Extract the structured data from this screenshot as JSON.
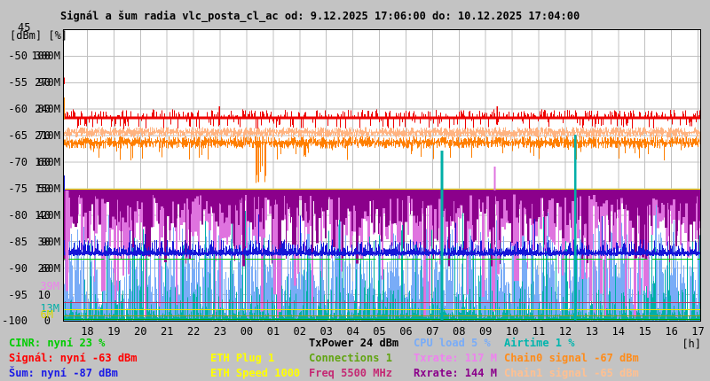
{
  "title": "Signál a šum radia vlc_posta_cl_ac od: 9.12.2025 17:06:00 do: 10.12.2025 17:04:00",
  "axis": {
    "top_value": "45",
    "unit_label": "[dBm] [%]",
    "hour_unit": "[h]",
    "rows": [
      {
        "dbm": "-50",
        "pct": "100",
        "rate": "300M"
      },
      {
        "dbm": "-55",
        "pct": "90",
        "rate": "270M"
      },
      {
        "dbm": "-60",
        "pct": "80",
        "rate": "240M"
      },
      {
        "dbm": "-65",
        "pct": "70",
        "rate": "210M"
      },
      {
        "dbm": "-70",
        "pct": "60",
        "rate": "180M"
      },
      {
        "dbm": "-75",
        "pct": "50",
        "rate": "150M"
      },
      {
        "dbm": "-80",
        "pct": "40",
        "rate": "120M"
      },
      {
        "dbm": "-85",
        "pct": "30",
        "rate": "90M"
      },
      {
        "dbm": "-90",
        "pct": "20",
        "rate": "60M"
      },
      {
        "dbm": "-95",
        "pct": "10",
        "rate": ""
      },
      {
        "dbm": "-100",
        "pct": "0",
        "rate": ""
      }
    ],
    "colored_markers": [
      {
        "label": "39M",
        "color": "#ee82ee",
        "m": 39
      },
      {
        "label": "13M",
        "color": "#00afa7",
        "m": 13
      },
      {
        "label": "6M",
        "color": "#d6d600",
        "m": 6
      }
    ],
    "hours": [
      "18",
      "19",
      "20",
      "21",
      "22",
      "23",
      "00",
      "01",
      "02",
      "03",
      "04",
      "05",
      "06",
      "07",
      "08",
      "09",
      "10",
      "11",
      "12",
      "13",
      "14",
      "15",
      "16",
      "17"
    ]
  },
  "legend": {
    "col1": [
      {
        "label": "CINR: nyní 23 %",
        "color": "#00cc00"
      },
      {
        "label": "Signál: nyní -63 dBm",
        "color": "#ff0000"
      },
      {
        "label": "Šum: nyní -87 dBm",
        "color": "#1a1ae6"
      }
    ],
    "col2": [
      {
        "label": "ETH Plug 1",
        "color": "#ffff00"
      },
      {
        "label": "ETH Speed 1000",
        "color": "#ffff00"
      }
    ],
    "col3": [
      {
        "label": "TxPower 24 dBm",
        "color": "#000000"
      },
      {
        "label": "Connections 1",
        "color": "#62a413"
      },
      {
        "label": "Freq 5500 MHz",
        "color": "#c42a74"
      }
    ],
    "col4": [
      {
        "label": "CPU load 5 %",
        "color": "#79acf7"
      },
      {
        "label": "Txrate: 117 M",
        "color": "#ee82ee"
      },
      {
        "label": "Rxrate: 144 M",
        "color": "#8b008b"
      }
    ],
    "col5": [
      {
        "label": "Airtime 1 %",
        "color": "#00b5ad"
      },
      {
        "label": "Chain0 signal -67 dBm",
        "color": "#ff8c1a"
      },
      {
        "label": "Chain1 signal -65 dBm",
        "color": "#ffc091"
      }
    ]
  },
  "chart_data": {
    "type": "line",
    "title": "Signál a šum radia vlc_posta_cl_ac od: 9.12.2025 17:06:00 do: 10.12.2025 17:04:00",
    "x_hours": [
      "18",
      "19",
      "20",
      "21",
      "22",
      "23",
      "00",
      "01",
      "02",
      "03",
      "04",
      "05",
      "06",
      "07",
      "08",
      "09",
      "10",
      "11",
      "12",
      "13",
      "14",
      "15",
      "16",
      "17"
    ],
    "x_start": "17:06",
    "x_end": "17:04",
    "ylim_dbm": [
      -100,
      -45
    ],
    "ylim_pct": [
      0,
      110
    ],
    "ylim_rate_M": [
      0,
      330
    ],
    "grid": true,
    "series": [
      {
        "id": "signal",
        "label": "Signál",
        "color": "#ee0000",
        "kind": "fuzzy-line",
        "center_dbm": -62.0,
        "now": "-63 dBm"
      },
      {
        "id": "chain1",
        "label": "Chain1 signal",
        "color": "#ffb380",
        "kind": "fuzzy-line",
        "center_dbm": -64.7,
        "now": "-65 dBm"
      },
      {
        "id": "chain0",
        "label": "Chain0 signal",
        "color": "#ff7f00",
        "kind": "fuzzy-line",
        "center_dbm": -66.6,
        "now": "-67 dBm"
      },
      {
        "id": "sum",
        "label": "Šum",
        "color": "#1515d8",
        "kind": "fuzzy-line",
        "center_dbm": -87.1,
        "now": "-87 dBm"
      },
      {
        "id": "rxrate",
        "label": "Rxrate",
        "color": "#8b008b",
        "kind": "bars-down",
        "top_M": 148,
        "typ_M": [
          100,
          142
        ],
        "now": "144 M"
      },
      {
        "id": "txrate",
        "label": "Txrate",
        "color": "#df73df",
        "kind": "bars-down",
        "top_M": 148,
        "typ_M": [
          62,
          128
        ],
        "now": "117 M"
      },
      {
        "id": "cpu",
        "label": "CPU load",
        "color": "#79acf7",
        "kind": "bars-up",
        "typ_pct": [
          2,
          48
        ],
        "now": "5 %"
      },
      {
        "id": "airtime",
        "label": "Airtime",
        "color": "#00afa7",
        "kind": "bars-up",
        "typ_pct": [
          1,
          45
        ],
        "now": "1 %"
      }
    ],
    "hlines": [
      {
        "name": "eth-speed-line",
        "color": "#ffff00",
        "scale": "M",
        "value": 150
      },
      {
        "name": "txpower-line",
        "color": "#000000",
        "scale": "dbm",
        "value": -87.1
      },
      {
        "name": "cinr-line",
        "color": "#00c800",
        "scale": "dbm",
        "value": -88.2,
        "dash": "46 5"
      },
      {
        "name": "freq-line",
        "color": "#c83264",
        "scale": "M",
        "value": 21
      },
      {
        "name": "eth-line",
        "color": "#e8e800",
        "scale": "M",
        "value": 13.5
      },
      {
        "name": "plug-line",
        "color": "#a0a000",
        "scale": "M",
        "value": 6
      },
      {
        "name": "base-line",
        "color": "#00a000",
        "scale": "M",
        "value": 2
      }
    ],
    "events": [
      {
        "series": "airtime",
        "t": 14.26,
        "m": [
          0,
          193
        ],
        "w": 3
      },
      {
        "series": "airtime",
        "t": 19.28,
        "m": [
          0,
          211
        ],
        "w": 2.5
      },
      {
        "series": "txrate",
        "t": 16.24,
        "m": [
          175,
          148
        ],
        "w": 2
      },
      {
        "series": "signal",
        "t": 5.87,
        "dbm": [
          -59.5,
          -63
        ],
        "w": 1.5
      },
      {
        "series": "signal",
        "t": 16.34,
        "dbm": [
          -59.5,
          -63
        ],
        "w": 1.5
      },
      {
        "series": "chain0",
        "t": 7.35,
        "dbm": [
          -66,
          -73.8
        ],
        "w": 1.5
      },
      {
        "series": "signal",
        "t": 0.03,
        "dbm": [
          -54,
          -55.3
        ],
        "w": 1.5
      },
      {
        "series": "chain0",
        "t": 0.03,
        "dbm": [
          -57.8,
          -62
        ],
        "w": 1.5
      },
      {
        "series": "sum",
        "t": 0.03,
        "dbm": [
          -72.5,
          -75.4
        ],
        "w": 1.5
      },
      {
        "series": "txrate",
        "t": 0.1,
        "m": [
          148,
          42
        ],
        "w": 2
      },
      {
        "series": "txrate",
        "t": 0.16,
        "m": [
          148,
          55
        ],
        "w": 2
      }
    ]
  }
}
